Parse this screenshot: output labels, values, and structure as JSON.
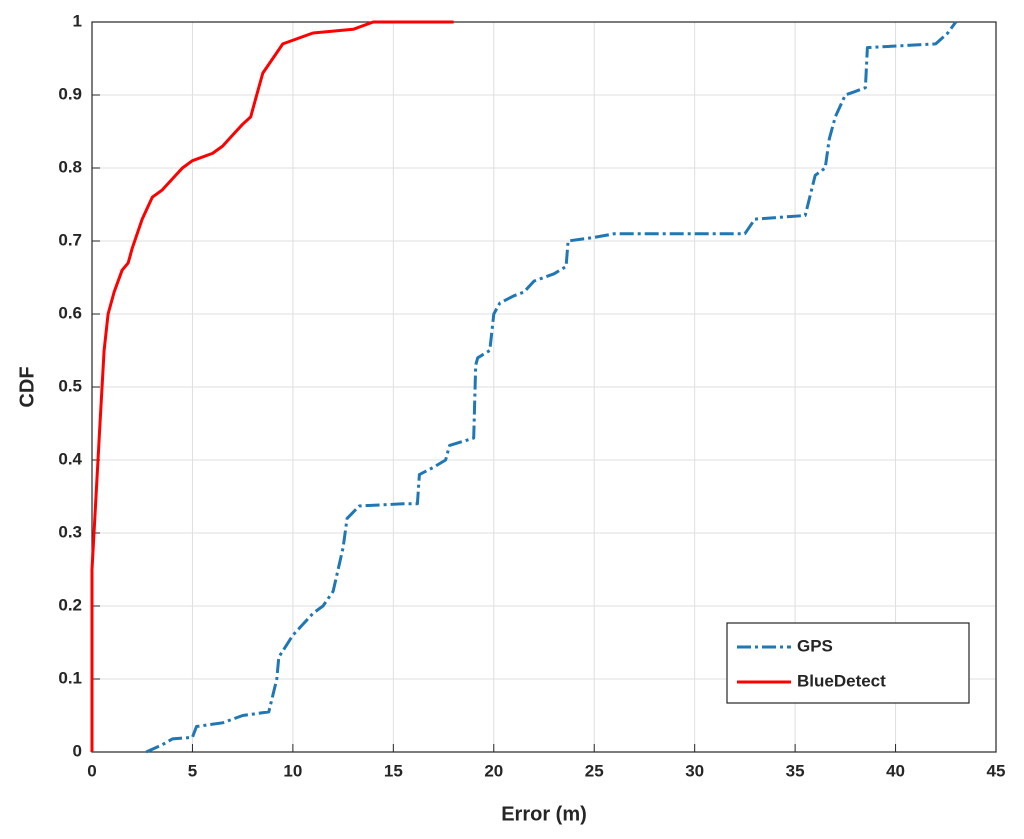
{
  "chart_data": {
    "type": "line",
    "x_label": "Error (m)",
    "y_label": "CDF",
    "xlim": [
      0,
      45
    ],
    "ylim": [
      0,
      1
    ],
    "xticks": [
      0,
      5,
      10,
      15,
      20,
      25,
      30,
      35,
      40,
      45
    ],
    "yticks": [
      0,
      0.1,
      0.2,
      0.3,
      0.4,
      0.5,
      0.6,
      0.7,
      0.8,
      0.9,
      1
    ],
    "grid": true,
    "legend": "lower right",
    "series": [
      {
        "name": "GPS",
        "color": "#1f77b4",
        "dash": "dashdot",
        "x": [
          2.7,
          3.5,
          4,
          5,
          5.2,
          6.5,
          7.5,
          8.8,
          9.2,
          9.3,
          10,
          11,
          11.5,
          12,
          12.5,
          12.7,
          13.3,
          15.5,
          16.2,
          16.3,
          17,
          17.6,
          17.8,
          19,
          19.1,
          19.2,
          19.8,
          20,
          20.3,
          21,
          21.5,
          22,
          23,
          23.6,
          23.7,
          25,
          26,
          32.5,
          33,
          35.5,
          36,
          36.5,
          36.7,
          37,
          37.5,
          38,
          38.5,
          38.6,
          42,
          42.6,
          43
        ],
        "values": [
          0,
          0.01,
          0.018,
          0.02,
          0.035,
          0.04,
          0.05,
          0.055,
          0.1,
          0.13,
          0.16,
          0.19,
          0.2,
          0.22,
          0.28,
          0.32,
          0.337,
          0.34,
          0.34,
          0.38,
          0.39,
          0.4,
          0.42,
          0.43,
          0.53,
          0.54,
          0.55,
          0.6,
          0.615,
          0.625,
          0.63,
          0.645,
          0.655,
          0.665,
          0.7,
          0.705,
          0.71,
          0.71,
          0.73,
          0.735,
          0.79,
          0.8,
          0.84,
          0.87,
          0.9,
          0.905,
          0.91,
          0.965,
          0.97,
          0.985,
          1
        ]
      },
      {
        "name": "BlueDetect",
        "color": "#ff0000",
        "dash": "solid",
        "x": [
          0,
          0,
          0.2,
          0.4,
          0.6,
          0.8,
          1.1,
          1.5,
          1.8,
          2,
          2.5,
          3,
          3.5,
          4,
          4.5,
          5,
          6,
          6.5,
          7,
          7.5,
          7.9,
          8.2,
          8.5,
          9,
          9.5,
          10.5,
          11,
          13,
          14,
          18
        ],
        "values": [
          0,
          0.25,
          0.35,
          0.45,
          0.55,
          0.6,
          0.63,
          0.66,
          0.67,
          0.69,
          0.73,
          0.76,
          0.77,
          0.785,
          0.8,
          0.81,
          0.82,
          0.83,
          0.845,
          0.86,
          0.87,
          0.9,
          0.93,
          0.95,
          0.97,
          0.98,
          0.985,
          0.99,
          1,
          1
        ]
      }
    ]
  }
}
